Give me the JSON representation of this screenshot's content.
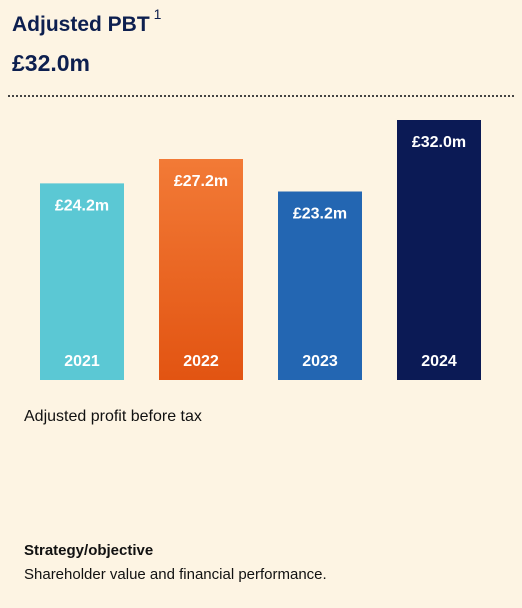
{
  "header": {
    "title": "Adjusted PBT",
    "footnote_marker": "1",
    "headline_value": "£32.0m"
  },
  "chart_data": {
    "type": "bar",
    "title": "",
    "categories": [
      "2021",
      "2022",
      "2023",
      "2024"
    ],
    "values": [
      24.2,
      27.2,
      23.2,
      32.0
    ],
    "value_labels": [
      "£24.2m",
      "£27.2m",
      "£23.2m",
      "£32.0m"
    ],
    "unit": "£m",
    "colors": [
      "#5bc8d4",
      "#ef6a2a",
      "#2366b2",
      "#0b1a55"
    ],
    "xlabel": "",
    "ylabel": "",
    "grid": false,
    "legend": "none"
  },
  "caption": "Adjusted profit before tax",
  "strategy": {
    "title": "Strategy/objective",
    "text": "Shareholder value and financial performance."
  }
}
